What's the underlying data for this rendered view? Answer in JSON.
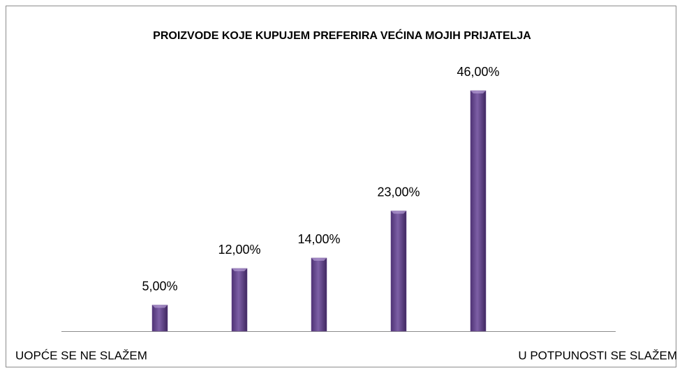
{
  "chart_data": {
    "type": "bar",
    "title": "PROIZVODE KOJE KUPUJEM PREFERIRA VEĆINA MOJIH PRIJATELJA",
    "categories": [
      null,
      null,
      null,
      null,
      null
    ],
    "values": [
      5,
      12,
      14,
      23,
      46
    ],
    "value_labels": [
      "5,00%",
      "12,00%",
      "14,00%",
      "23,00%",
      "46,00%"
    ],
    "color": "#64468c",
    "annotations": [
      "UOPĆE SE NE SLAŽEM",
      "U POTPUNOSTI SE SLAŽEM"
    ]
  }
}
